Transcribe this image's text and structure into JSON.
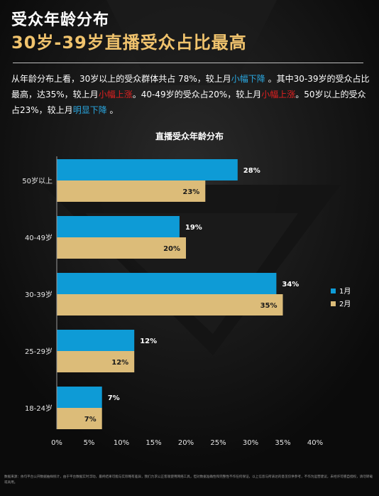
{
  "header": {
    "title_line1": "受众年龄分布",
    "title_line2": "30岁-39岁直播受众占比最高"
  },
  "description": {
    "seg1": "从年龄分布上看，30岁以上的受众群体共占 78%，较上月",
    "seg2": "小幅下降",
    "seg3": " 。其中30-39岁的受众占比最高，达35%，较上月",
    "seg4": "小幅上涨",
    "seg5": "。40-49岁的受众占20%，较上月",
    "seg6": "小幅上涨",
    "seg7": "。50岁以上的受众占23%，较上月",
    "seg8": "明显下降",
    "seg9": " 。"
  },
  "colors": {
    "series1": "#0e9bd6",
    "series2": "#dcbc79",
    "highlight_blue": "#2aa7e0",
    "highlight_red": "#e02020",
    "title_gold": "#f0c36d"
  },
  "chart_data": {
    "type": "bar",
    "orientation": "horizontal",
    "title": "直播受众年龄分布",
    "categories": [
      "50岁以上",
      "40-49岁",
      "30-39岁",
      "25-29岁",
      "18-24岁"
    ],
    "series": [
      {
        "name": "1月",
        "values": [
          28,
          19,
          34,
          12,
          7
        ]
      },
      {
        "name": "2月",
        "values": [
          23,
          20,
          35,
          12,
          7
        ]
      }
    ],
    "xlim": [
      0,
      40
    ],
    "xticks": [
      "0%",
      "5%",
      "10%",
      "15%",
      "20%",
      "25%",
      "30%",
      "35%",
      "40%"
    ],
    "value_suffix": "%",
    "legend_position": "right",
    "grid": false
  },
  "footer": {
    "text": "数据来源：依句平台公开数据抽样统计，由于平台数据实时浮动，最终结果可能与实际略有差异，我们力求公正客观使用网络工具，但对数据准确性和完整性不作任何保证，以上信息与所表达的意见仅供参考，不作为运营建议，未经许可擅自授权，请勿转载或商用。"
  }
}
